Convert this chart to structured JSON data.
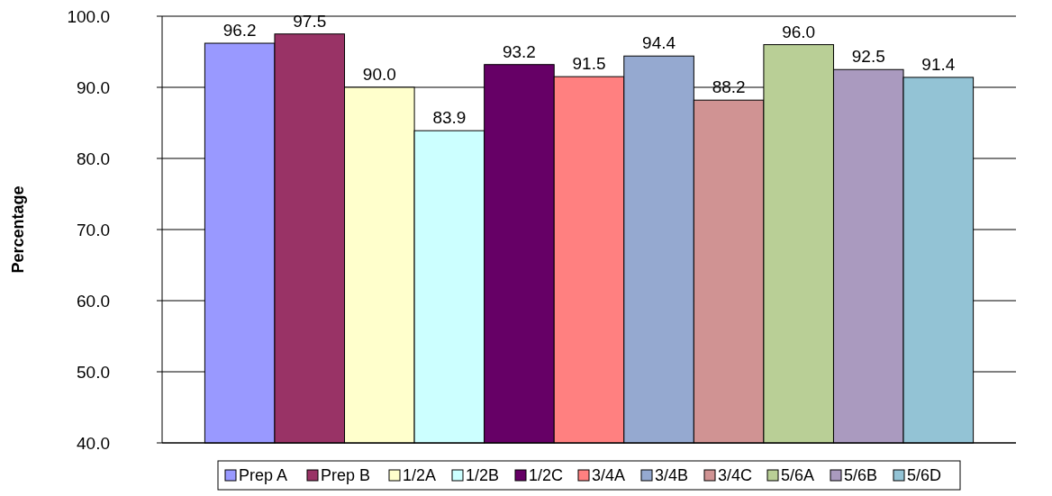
{
  "chart_data": {
    "type": "bar",
    "ylabel": "Percentage",
    "categories": [
      null
    ],
    "series": [
      {
        "name": "Prep A",
        "color": "#9999ff",
        "values": [
          96.2
        ]
      },
      {
        "name": "Prep B",
        "color": "#993366",
        "values": [
          97.5
        ]
      },
      {
        "name": "1/2A",
        "color": "#ffffcc",
        "values": [
          90.0
        ],
        "value_labels": [
          "90.0"
        ]
      },
      {
        "name": "1/2B",
        "color": "#ccffff",
        "values": [
          83.9
        ]
      },
      {
        "name": "1/2C",
        "color": "#660066",
        "values": [
          93.2
        ]
      },
      {
        "name": "3/4A",
        "color": "#ff8080",
        "values": [
          91.5
        ]
      },
      {
        "name": "3/4B",
        "color": "#95a9d0",
        "values": [
          94.4
        ]
      },
      {
        "name": "3/4C",
        "color": "#d09393",
        "values": [
          88.2
        ]
      },
      {
        "name": "5/6A",
        "color": "#b9cf96",
        "values": [
          96.0
        ],
        "value_labels": [
          "96.0"
        ]
      },
      {
        "name": "5/6B",
        "color": "#aa9abf",
        "values": [
          92.5
        ]
      },
      {
        "name": "5/6D",
        "color": "#93c3d5",
        "values": [
          91.4
        ]
      }
    ],
    "ylim": [
      40,
      100
    ],
    "yticks": [
      {
        "value": 40,
        "label": "40.0"
      },
      {
        "value": 50,
        "label": "50.0"
      },
      {
        "value": 60,
        "label": "60.0"
      },
      {
        "value": 70,
        "label": "70.0"
      },
      {
        "value": 80,
        "label": "80.0"
      },
      {
        "value": 90,
        "label": "90.0"
      },
      {
        "value": 100,
        "label": "100.0"
      }
    ],
    "grid": "y",
    "legend": "bottom",
    "data_labels": true
  }
}
